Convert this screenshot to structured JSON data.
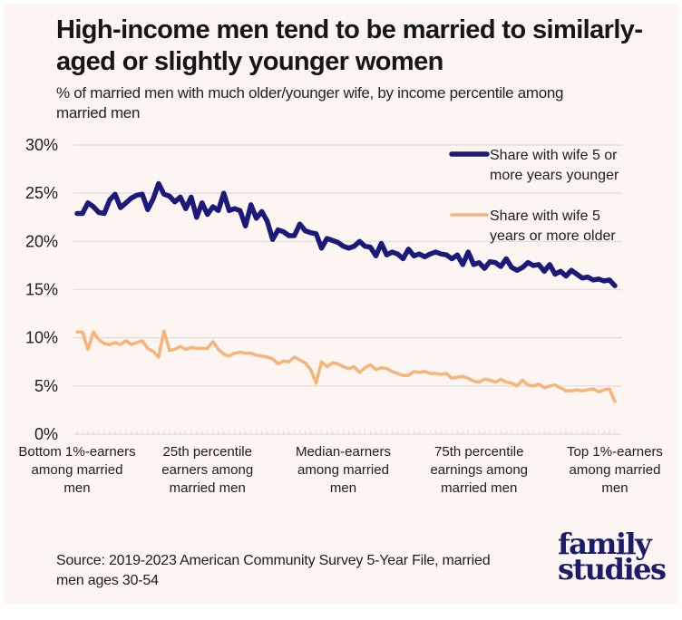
{
  "title": "High-income men tend to be married to similarly-aged or slightly younger women",
  "subtitle": "% of married men with much older/younger wife, by income percentile among married men",
  "source": "Source: 2019-2023 American Community Survey 5-Year File, married men ages 30-54",
  "logo": {
    "line1": "family",
    "line2": "studies"
  },
  "colors": {
    "background": "#fcf5f1",
    "younger": "#1b1a7a",
    "older": "#f7b47a",
    "grid": "#e6e0dc"
  },
  "chart_data": {
    "type": "line",
    "title": "High-income men tend to be married to similarly-aged or slightly younger women",
    "subtitle": "% of married men with much older/younger wife, by income percentile among married men",
    "xlabel": "Income percentile among married men",
    "ylabel": "",
    "ylim": [
      0,
      30
    ],
    "yticks": [
      0,
      5,
      10,
      15,
      20,
      25,
      30
    ],
    "ytick_labels": [
      "0%",
      "5%",
      "10%",
      "15%",
      "20%",
      "25%",
      "30%"
    ],
    "x_range": [
      1,
      100
    ],
    "grid": true,
    "legend_position": "top-right",
    "x_category_labels": [
      {
        "x": 1,
        "lines": [
          "Bottom 1%-earners",
          "among married",
          "men"
        ]
      },
      {
        "x": 25,
        "lines": [
          "25th percentile",
          "earners among",
          "married men"
        ]
      },
      {
        "x": 50,
        "lines": [
          "Median-earners",
          "among married",
          "men"
        ]
      },
      {
        "x": 75,
        "lines": [
          "75th percentile",
          "earnings among",
          "married men"
        ]
      },
      {
        "x": 100,
        "lines": [
          "Top 1%-earners",
          "among married",
          "men"
        ]
      }
    ],
    "series": [
      {
        "name": "Share with wife 5 or more years younger",
        "legend_lines": [
          "Share with wife 5 or",
          "more years younger"
        ],
        "color": "#1b1a7a",
        "values": [
          22.9,
          22.9,
          24.0,
          23.6,
          23.0,
          22.9,
          24.3,
          24.9,
          23.5,
          24.0,
          24.5,
          24.8,
          24.9,
          23.3,
          24.4,
          26.0,
          24.9,
          24.7,
          24.1,
          24.6,
          23.4,
          24.6,
          22.5,
          24.0,
          22.8,
          23.6,
          23.2,
          25.0,
          23.2,
          23.4,
          23.2,
          21.6,
          23.8,
          22.4,
          23.1,
          22.1,
          20.2,
          21.2,
          21.0,
          20.6,
          20.6,
          21.8,
          21.1,
          20.9,
          20.8,
          19.3,
          20.3,
          20.1,
          19.9,
          19.5,
          19.3,
          19.5,
          20.0,
          19.5,
          19.4,
          18.5,
          19.8,
          18.6,
          18.9,
          18.7,
          18.2,
          19.2,
          18.5,
          18.7,
          18.4,
          18.7,
          18.9,
          18.7,
          18.6,
          18.2,
          18.6,
          17.6,
          18.9,
          17.6,
          17.8,
          17.2,
          17.9,
          17.8,
          17.4,
          18.2,
          17.3,
          17.0,
          17.3,
          17.8,
          17.5,
          17.6,
          16.9,
          17.6,
          16.6,
          16.9,
          16.4,
          17.0,
          16.6,
          16.2,
          16.3,
          16.0,
          16.1,
          15.9,
          16.0,
          15.4
        ]
      },
      {
        "name": "Share with wife 5 years or more older",
        "legend_lines": [
          "Share with wife 5",
          "years or more older"
        ],
        "color": "#f7b47a",
        "values": [
          10.6,
          10.6,
          8.8,
          10.6,
          9.8,
          9.4,
          9.3,
          9.5,
          9.3,
          9.7,
          9.3,
          9.5,
          9.7,
          8.9,
          8.6,
          8.0,
          10.7,
          8.7,
          8.8,
          9.1,
          8.8,
          9.0,
          8.9,
          8.9,
          8.9,
          9.6,
          8.8,
          8.3,
          8.1,
          8.4,
          8.5,
          8.4,
          8.4,
          8.2,
          8.1,
          8.0,
          7.8,
          7.3,
          7.6,
          7.5,
          8.0,
          7.7,
          7.4,
          6.7,
          5.3,
          7.5,
          7.0,
          7.4,
          7.3,
          7.0,
          6.8,
          7.0,
          6.4,
          6.9,
          7.2,
          6.7,
          6.9,
          6.8,
          6.5,
          6.3,
          6.1,
          6.1,
          6.5,
          6.4,
          6.5,
          6.3,
          6.3,
          6.2,
          6.3,
          5.8,
          5.9,
          6.0,
          5.8,
          5.5,
          5.4,
          5.7,
          5.6,
          5.4,
          5.7,
          5.4,
          5.3,
          5.0,
          5.6,
          5.1,
          5.0,
          5.2,
          4.8,
          5.0,
          5.1,
          4.8,
          4.5,
          4.5,
          4.6,
          4.5,
          4.6,
          4.7,
          4.4,
          4.6,
          4.7,
          3.4
        ]
      }
    ]
  }
}
